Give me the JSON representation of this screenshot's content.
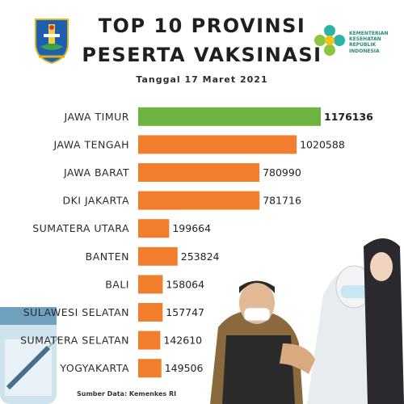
{
  "chart_data": {
    "type": "bar",
    "orientation": "horizontal",
    "title_line1": "TOP 10 PROVINSI",
    "title_line2": "PESERTA VAKSINASI",
    "subtitle": "Tanggal 17 Maret 2021",
    "categories": [
      "JAWA TIMUR",
      "JAWA TENGAH",
      "JAWA BARAT",
      "DKI JAKARTA",
      "SUMATERA UTARA",
      "BANTEN",
      "BALI",
      "SULAWESI SELATAN",
      "SUMATERA SELATAN",
      "YOGYAKARTA"
    ],
    "values": [
      1176136,
      1020588,
      780990,
      781716,
      199664,
      253824,
      158064,
      157747,
      142610,
      149506
    ],
    "value_labels": [
      "1176136",
      "1020588",
      "780990",
      "781716",
      "199664",
      "253824",
      "158064",
      "157747",
      "142610",
      "149506"
    ],
    "highlight_index": 0,
    "colors": {
      "highlight": "#6db33f",
      "default": "#f07e2c"
    },
    "xlim": [
      0,
      1176136
    ],
    "grid": false,
    "source": "Sumber Data: Kemenkes RI"
  },
  "logo": {
    "line1": "KEMENTERIAN",
    "line2": "KESEHATAN",
    "line3": "REPUBLIK",
    "line4": "INDONESIA"
  }
}
